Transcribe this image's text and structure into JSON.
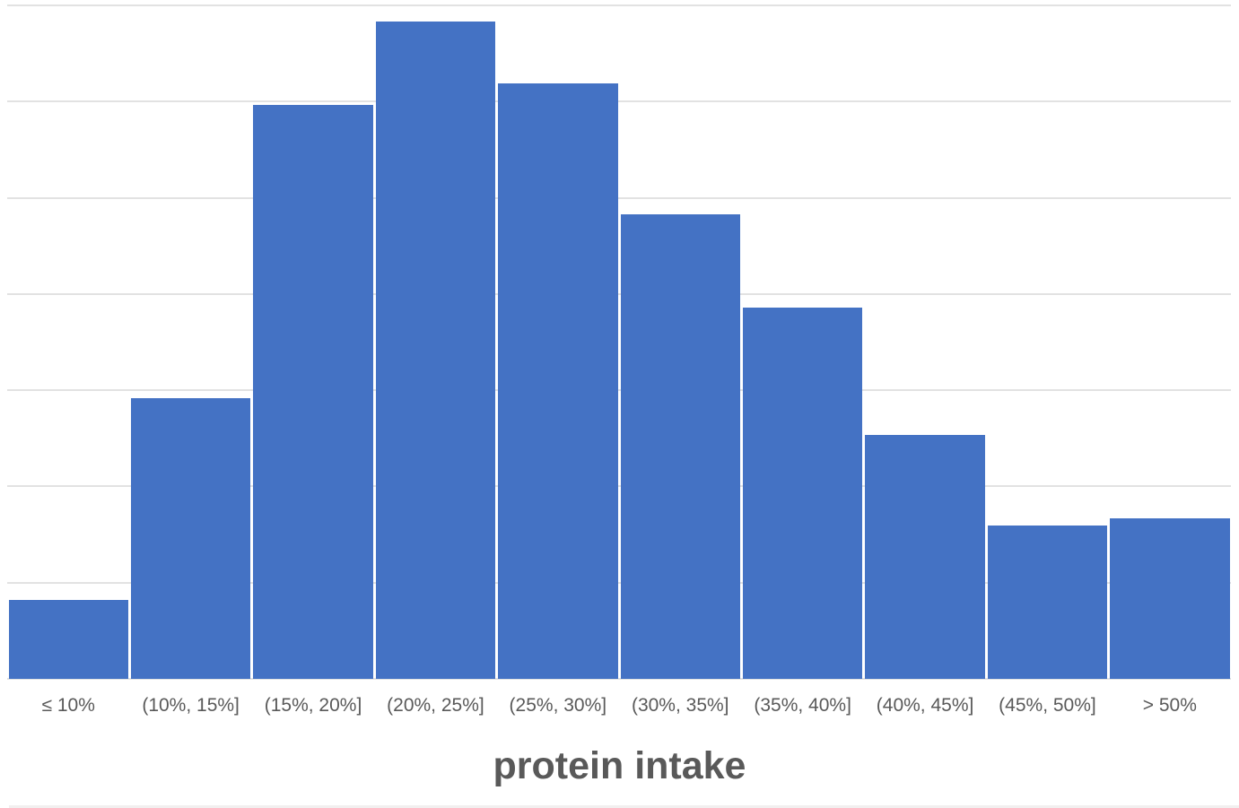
{
  "chart_data": {
    "type": "bar",
    "chart_kind": "histogram",
    "title": "",
    "xlabel": "protein intake",
    "ylabel": "",
    "categories": [
      "≤ 10%",
      "(10%, 15%]",
      "(15%, 20%]",
      "(20%, 25%]",
      "(25%, 30%]",
      "(30%, 35%]",
      "(35%, 40%]",
      "(40%, 45%]",
      "(45%, 50%]",
      "> 50%"
    ],
    "values": [
      0.82,
      2.92,
      5.97,
      6.83,
      6.19,
      4.83,
      3.86,
      2.54,
      1.59,
      1.67
    ],
    "value_unit": "gridline units (y-axis has no visible tick labels; heights estimated from gridlines)",
    "ylim": [
      0,
      7
    ],
    "gridline_interval": 1,
    "grid": "horizontal gridlines only",
    "legend": "none",
    "bar_gap": "thin white separators between adjacent bars",
    "colors": {
      "bar_fill": "#4472c4",
      "gridline": "#e2e2e2",
      "tick_label_text": "#595959",
      "axis_title_text": "#595959",
      "background": "#ffffff",
      "bottom_strip": "#f2efef"
    }
  }
}
